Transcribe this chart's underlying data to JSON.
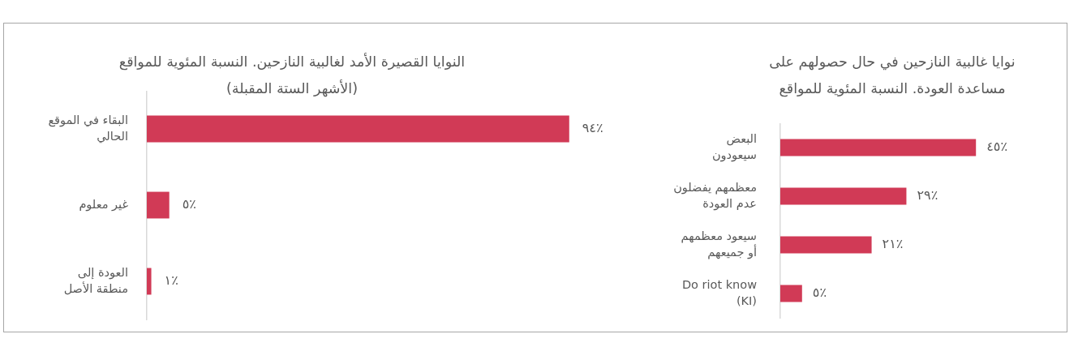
{
  "chart_data": [
    {
      "type": "bar",
      "orientation": "horizontal",
      "title": "النوايا القصيرة الأمد لغالبية النازحين. النسبة المئوية للمواقع\n(الأشهر الستة المقبلة)",
      "categories": [
        "البقاء في الموقع\nالحالي",
        "غير معلوم",
        "العودة إلى\nمنطقة الأصل"
      ],
      "values": [
        94,
        5,
        1
      ],
      "value_labels": [
        "٩٤٪",
        "٥٪",
        "١٪"
      ],
      "color": "#d13a56",
      "tick_labels": "y"
    },
    {
      "type": "bar",
      "orientation": "horizontal",
      "title": "نوايا غالبية النازحين في حال حصولهم على\nمساعدة العودة. النسبة المئوية للمواقع",
      "categories": [
        "البعض\nسيعودون",
        "معظمهم يفضلون\nعدم العودة",
        "سيعود معظمهم\nأو جميعهم",
        "Do riot know\n(KI)"
      ],
      "values": [
        45,
        29,
        21,
        5
      ],
      "value_labels": [
        "٤٥٪",
        "٢٩٪",
        "٢١٪",
        "٥٪"
      ],
      "color": "#d13a56",
      "tick_labels": "y"
    }
  ]
}
